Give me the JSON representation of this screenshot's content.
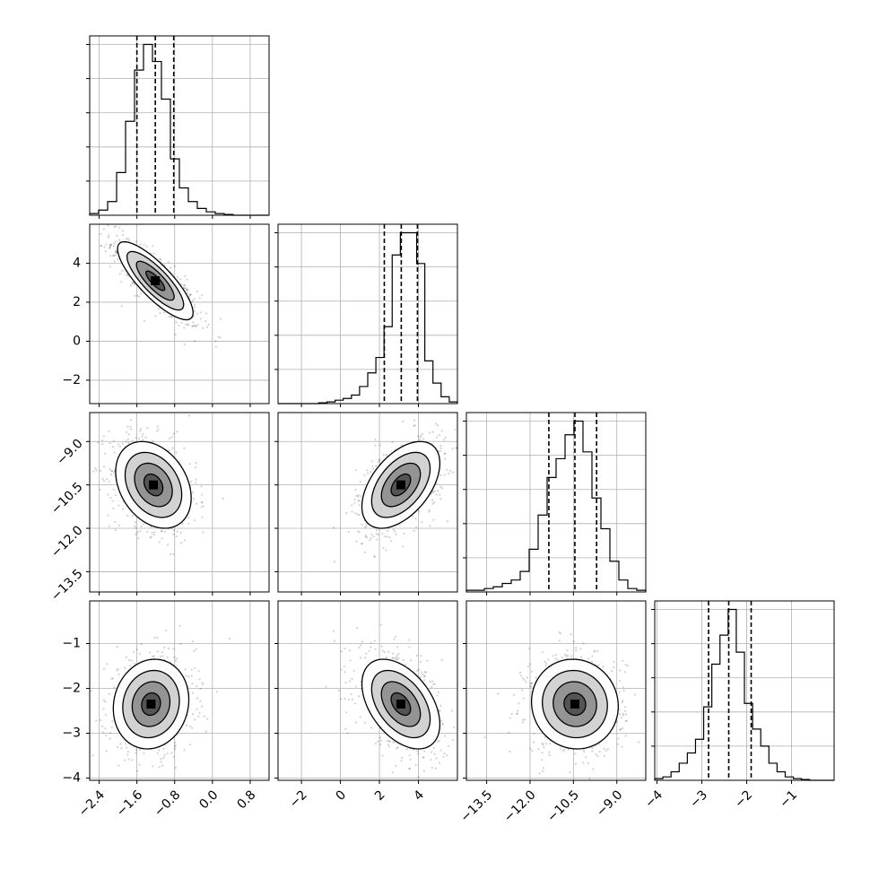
{
  "chart_data": {
    "type": "corner",
    "grid": true,
    "parameters": [
      {
        "range": [
          -2.6,
          1.2
        ],
        "ticks": [
          -2.4,
          -1.6,
          -0.8,
          0.0,
          0.8
        ],
        "tick_labels": [
          "−2.4",
          "−1.6",
          "−0.8",
          "0.0",
          "0.8"
        ],
        "quantiles": [
          -1.6,
          -1.21,
          -0.82
        ],
        "hist_bins": [
          -2.6,
          1.2,
          20
        ],
        "hist_counts": [
          0.01,
          0.03,
          0.08,
          0.25,
          0.55,
          0.85,
          1.0,
          0.9,
          0.68,
          0.33,
          0.16,
          0.08,
          0.04,
          0.02,
          0.01,
          0.005,
          0.0,
          0.0,
          0.0,
          0.0
        ],
        "hist_ylim": [
          0,
          1.05
        ],
        "hist_yticks": [
          0.2,
          0.4,
          0.6,
          0.8,
          1.0
        ]
      },
      {
        "range": [
          -3.2,
          6.0
        ],
        "ticks": [
          -2,
          0,
          2,
          4
        ],
        "tick_labels": [
          "−2",
          "0",
          "2",
          "4"
        ],
        "quantiles": [
          2.25,
          3.12,
          3.95
        ],
        "hist_bins": [
          -3.2,
          6.0,
          22
        ],
        "hist_counts": [
          0,
          0,
          0,
          0,
          0,
          0.005,
          0.01,
          0.02,
          0.03,
          0.05,
          0.1,
          0.18,
          0.27,
          0.45,
          0.87,
          1.0,
          1.0,
          0.82,
          0.25,
          0.12,
          0.04,
          0.01
        ],
        "hist_ylim": [
          0,
          1.05
        ],
        "hist_yticks": [
          0.2,
          0.4,
          0.6,
          0.8,
          1.0
        ]
      },
      {
        "range": [
          -14.2,
          -8.0
        ],
        "ticks": [
          -13.5,
          -12.0,
          -10.5,
          -9.0
        ],
        "tick_labels": [
          "−13.5",
          "−12.0",
          "−10.5",
          "−9.0"
        ],
        "quantiles": [
          -11.35,
          -10.45,
          -9.7
        ],
        "hist_bins": [
          -14.2,
          -8.0,
          20
        ],
        "hist_counts": [
          0.01,
          0.01,
          0.02,
          0.03,
          0.05,
          0.07,
          0.12,
          0.25,
          0.45,
          0.67,
          0.78,
          0.92,
          1.0,
          0.82,
          0.55,
          0.37,
          0.18,
          0.07,
          0.02,
          0.01
        ],
        "hist_ylim": [
          0,
          1.05
        ],
        "hist_yticks": [
          0.2,
          0.4,
          0.6,
          0.8,
          1.0
        ]
      },
      {
        "range": [
          -4.05,
          -0.05
        ],
        "ticks": [
          -4,
          -3,
          -2,
          -1
        ],
        "tick_labels": [
          "−4",
          "−3",
          "−2",
          "−1"
        ],
        "quantiles": [
          -2.85,
          -2.4,
          -1.9
        ],
        "hist_bins": [
          -4.05,
          -0.05,
          22
        ],
        "hist_counts": [
          0.01,
          0.02,
          0.05,
          0.1,
          0.16,
          0.24,
          0.43,
          0.68,
          0.85,
          1.0,
          0.75,
          0.45,
          0.3,
          0.2,
          0.1,
          0.05,
          0.02,
          0.01,
          0.005,
          0,
          0,
          0
        ],
        "hist_ylim": [
          0,
          1.05
        ],
        "hist_yticks": [
          0.2,
          0.4,
          0.6,
          0.8,
          1.0
        ]
      }
    ],
    "pairs": [
      {
        "x": 0,
        "y": 1,
        "mean": [
          -1.21,
          3.1
        ],
        "sd": [
          0.4,
          1.0
        ],
        "rho": -0.82
      },
      {
        "x": 0,
        "y": 2,
        "mean": [
          -1.25,
          -10.5
        ],
        "sd": [
          0.4,
          0.75
        ],
        "rho": -0.3
      },
      {
        "x": 1,
        "y": 2,
        "mean": [
          3.1,
          -10.5
        ],
        "sd": [
          1.0,
          0.75
        ],
        "rho": 0.5
      },
      {
        "x": 0,
        "y": 3,
        "mean": [
          -1.3,
          -2.35
        ],
        "sd": [
          0.4,
          0.5
        ],
        "rho": 0.1
      },
      {
        "x": 1,
        "y": 3,
        "mean": [
          3.1,
          -2.35
        ],
        "sd": [
          1.0,
          0.5
        ],
        "rho": -0.45
      },
      {
        "x": 2,
        "y": 3,
        "mean": [
          -10.45,
          -2.35
        ],
        "sd": [
          0.75,
          0.5
        ],
        "rho": -0.05
      }
    ],
    "contour_levels_sigma": [
      0.5,
      1.0,
      1.5,
      2.0
    ]
  }
}
